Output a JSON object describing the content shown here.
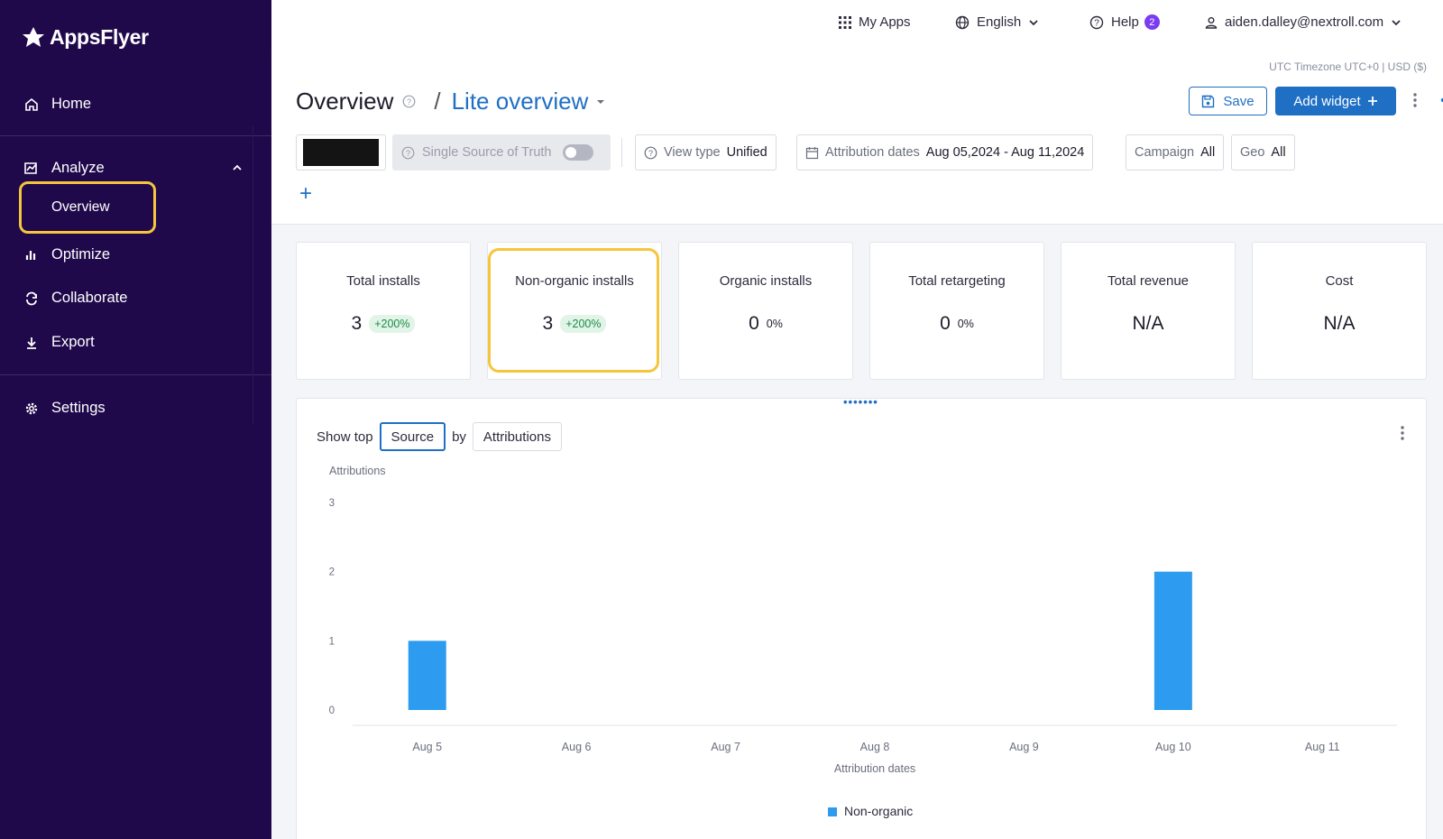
{
  "sidebar": {
    "brand": "AppsFlyer",
    "items": {
      "home": "Home",
      "analyze": "Analyze",
      "overview": "Overview",
      "optimize": "Optimize",
      "collaborate": "Collaborate",
      "export": "Export",
      "settings": "Settings"
    }
  },
  "topbar": {
    "my_apps": "My Apps",
    "language": "English",
    "help": "Help",
    "help_count": "2",
    "user_email": "aiden.dalley@nextroll.com"
  },
  "header": {
    "timezone": "UTC Timezone UTC+0 | USD ($)",
    "title": "Overview",
    "separator": "/",
    "dashboard_name": "Lite overview",
    "save_label": "Save",
    "add_widget_label": "Add widget",
    "filters": {
      "ssot_label": "Single Source of Truth",
      "view_type_label": "View type",
      "view_type_value": "Unified",
      "attribution_label": "Attribution dates",
      "attribution_value": "Aug 05,2024 - Aug 11,2024",
      "campaign_label": "Campaign",
      "campaign_value": "All",
      "geo_label": "Geo",
      "geo_value": "All"
    }
  },
  "kpis": [
    {
      "title": "Total installs",
      "value": "3",
      "change": "+200%"
    },
    {
      "title": "Non-organic installs",
      "value": "3",
      "change": "+200%"
    },
    {
      "title": "Organic installs",
      "value": "0",
      "change": "0%"
    },
    {
      "title": "Total retargeting",
      "value": "0",
      "change": "0%"
    },
    {
      "title": "Total revenue",
      "value": "N/A",
      "change": ""
    },
    {
      "title": "Cost",
      "value": "N/A",
      "change": ""
    }
  ],
  "widget": {
    "show_top_label": "Show top",
    "dimension": "Source",
    "by_label": "by",
    "metric": "Attributions"
  },
  "chart_data": {
    "type": "bar",
    "categories": [
      "Aug 5",
      "Aug 6",
      "Aug 7",
      "Aug 8",
      "Aug 9",
      "Aug 10",
      "Aug 11"
    ],
    "series": [
      {
        "name": "Non-organic",
        "values": [
          1,
          0,
          0,
          0,
          0,
          2,
          0
        ],
        "color": "#2d9cf0"
      }
    ],
    "xlabel": "Attribution dates",
    "ylabel": "Attributions",
    "yticks": [
      0,
      1,
      2,
      3
    ],
    "ylim": [
      0,
      3
    ],
    "grid": false,
    "legend_position": "bottom-center"
  },
  "colors": {
    "sidebar_bg": "#20094b",
    "accent": "#1f6fc4",
    "highlight": "#f5c53b",
    "bar": "#2d9cf0"
  }
}
